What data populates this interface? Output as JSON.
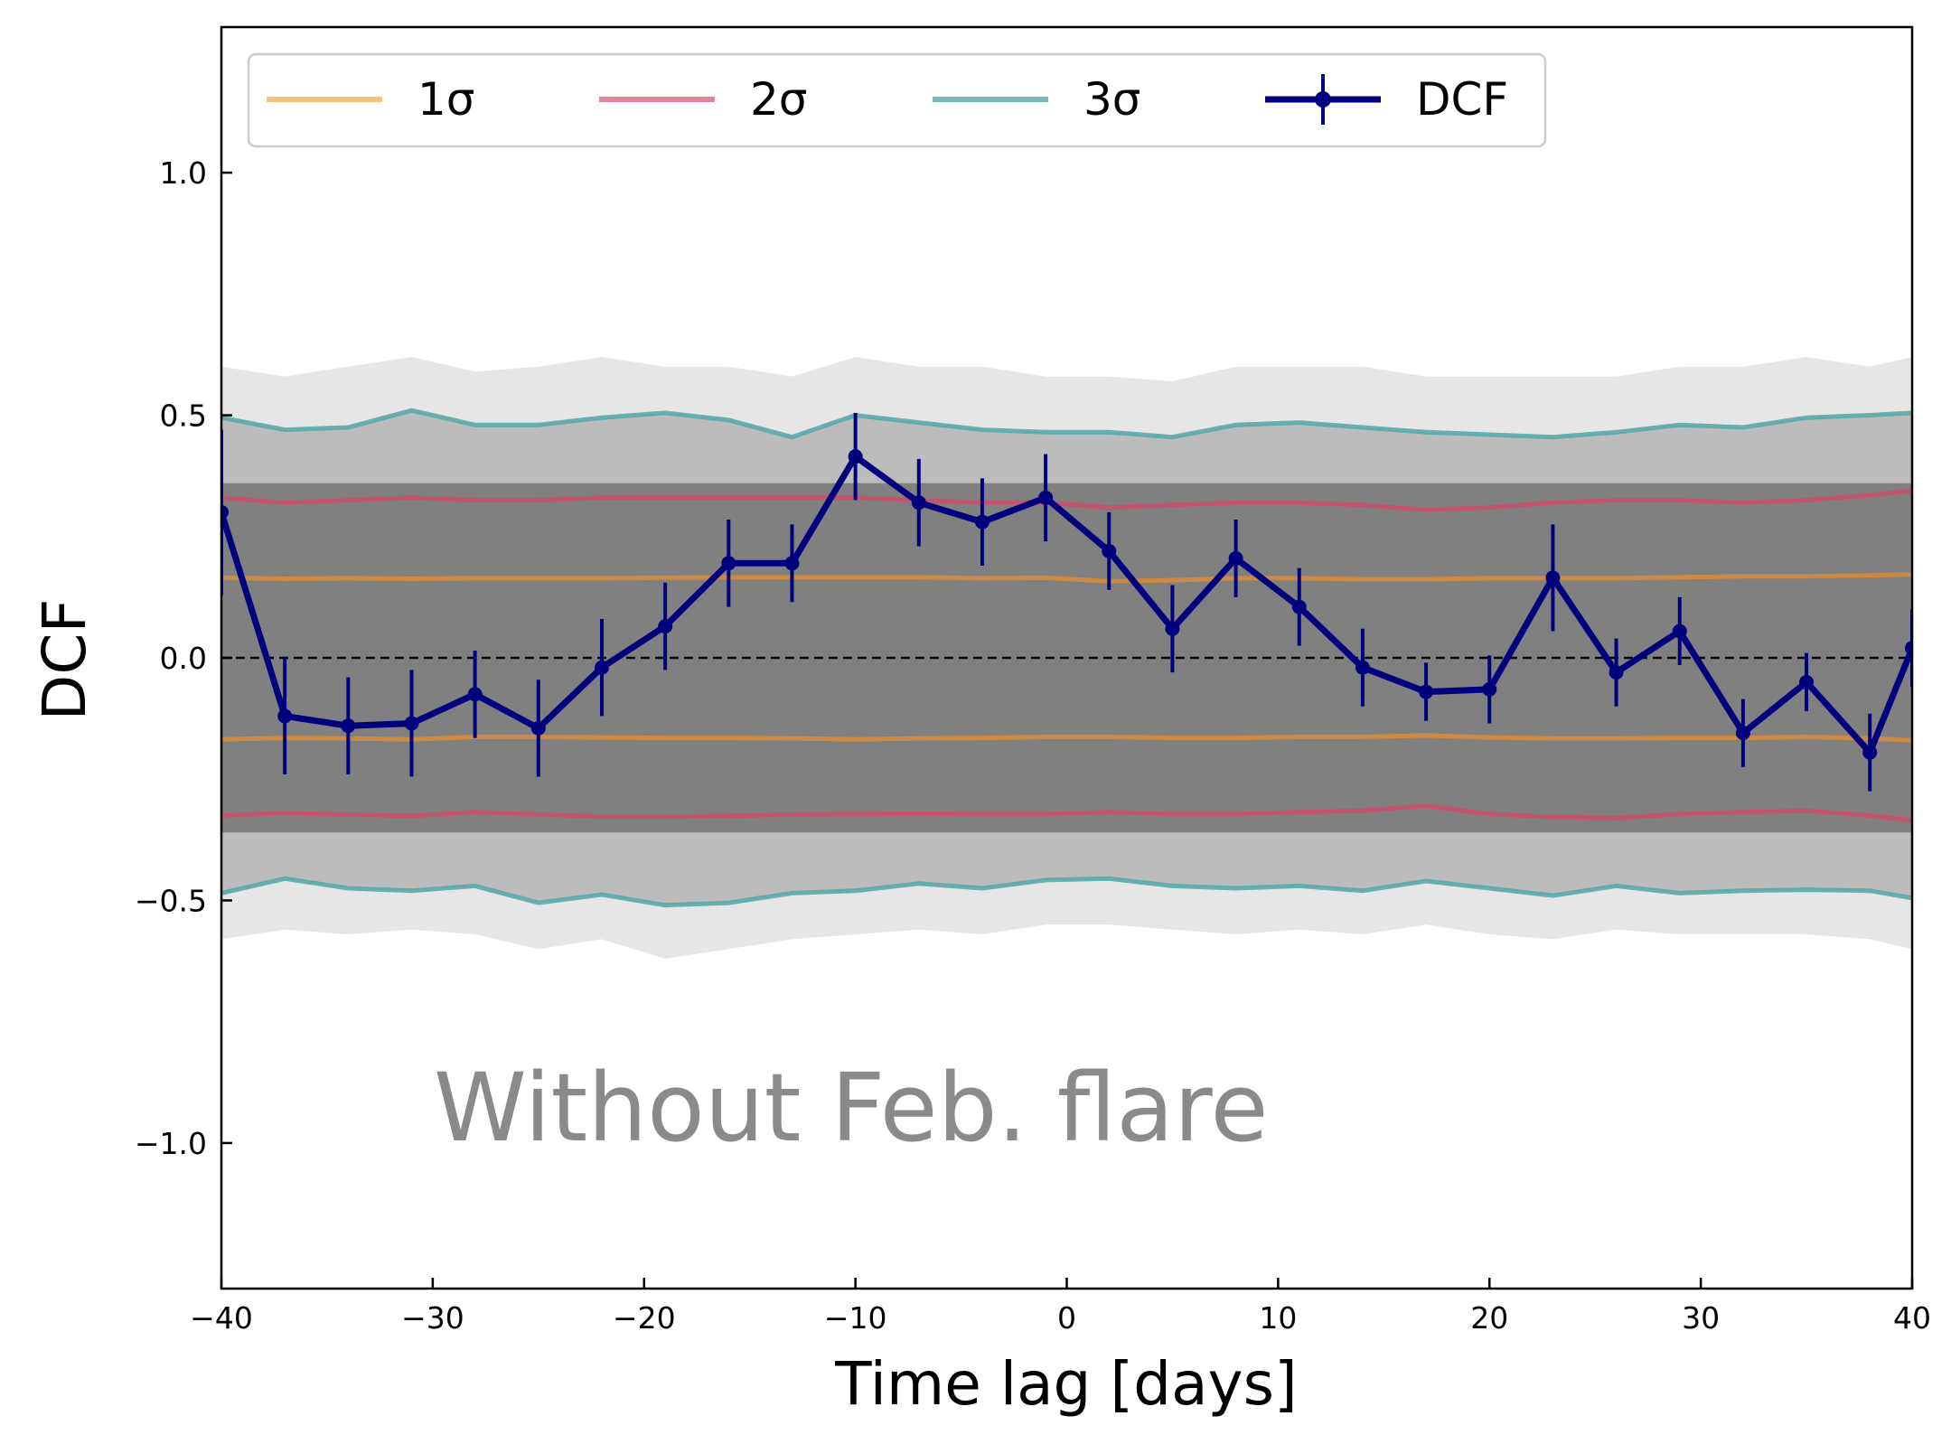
{
  "chart_data": {
    "type": "line",
    "xlabel": "Time lag [days]",
    "ylabel": "DCF",
    "xlim": [
      -40,
      40
    ],
    "ylim": [
      -1.3,
      1.3
    ],
    "x_ticks": [
      -40,
      -30,
      -20,
      -10,
      0,
      10,
      20,
      30,
      40
    ],
    "x_tick_labels": [
      "−40",
      "−30",
      "−20",
      "−10",
      "0",
      "10",
      "20",
      "30",
      "40"
    ],
    "y_ticks": [
      -1.0,
      -0.5,
      0.0,
      0.5,
      1.0
    ],
    "y_tick_labels": [
      "−1.0",
      "−0.5",
      "0.0",
      "0.5",
      "1.0"
    ],
    "grid": false,
    "legend_position": "top",
    "annotation": "Without Feb. flare",
    "zero_line": {
      "y": 0,
      "style": "dashed",
      "color": "#000000"
    },
    "x": [
      -40,
      -37,
      -34,
      -31,
      -28,
      -25,
      -22,
      -19,
      -16,
      -13,
      -10,
      -7,
      -4,
      -1,
      2,
      5,
      8,
      11,
      14,
      17,
      20,
      23,
      26,
      29,
      32,
      35,
      38,
      40
    ],
    "simulation_band": {
      "core_color": "#808080",
      "halo_color": "#c8c8c8",
      "core_lower": -0.36,
      "core_upper": 0.36,
      "halo_lower": [
        -0.58,
        -0.56,
        -0.57,
        -0.56,
        -0.57,
        -0.6,
        -0.58,
        -0.62,
        -0.6,
        -0.58,
        -0.57,
        -0.56,
        -0.57,
        -0.55,
        -0.55,
        -0.56,
        -0.57,
        -0.56,
        -0.57,
        -0.55,
        -0.57,
        -0.58,
        -0.56,
        -0.57,
        -0.57,
        -0.57,
        -0.58,
        -0.6
      ],
      "halo_upper": [
        0.6,
        0.58,
        0.6,
        0.62,
        0.59,
        0.6,
        0.62,
        0.6,
        0.6,
        0.58,
        0.62,
        0.6,
        0.6,
        0.58,
        0.58,
        0.57,
        0.6,
        0.6,
        0.6,
        0.58,
        0.58,
        0.58,
        0.58,
        0.6,
        0.6,
        0.62,
        0.6,
        0.62
      ]
    },
    "series": [
      {
        "name": "1σ",
        "color": "#f6c27a",
        "band_color": "#d4893a",
        "upper": [
          0.165,
          0.163,
          0.164,
          0.163,
          0.164,
          0.164,
          0.164,
          0.165,
          0.166,
          0.166,
          0.166,
          0.166,
          0.164,
          0.165,
          0.158,
          0.16,
          0.164,
          0.164,
          0.162,
          0.162,
          0.164,
          0.164,
          0.164,
          0.166,
          0.168,
          0.168,
          0.17,
          0.172
        ],
        "lower": [
          -0.168,
          -0.165,
          -0.166,
          -0.168,
          -0.163,
          -0.163,
          -0.164,
          -0.165,
          -0.165,
          -0.166,
          -0.168,
          -0.166,
          -0.165,
          -0.163,
          -0.163,
          -0.165,
          -0.165,
          -0.163,
          -0.163,
          -0.16,
          -0.164,
          -0.166,
          -0.166,
          -0.165,
          -0.165,
          -0.163,
          -0.166,
          -0.17
        ]
      },
      {
        "name": "2σ",
        "color": "#e8849a",
        "band_color": "#c9506a",
        "upper": [
          0.33,
          0.32,
          0.325,
          0.33,
          0.325,
          0.325,
          0.33,
          0.33,
          0.33,
          0.33,
          0.33,
          0.325,
          0.32,
          0.32,
          0.31,
          0.315,
          0.32,
          0.32,
          0.315,
          0.305,
          0.31,
          0.32,
          0.325,
          0.325,
          0.32,
          0.325,
          0.335,
          0.345
        ],
        "lower": [
          -0.325,
          -0.32,
          -0.323,
          -0.326,
          -0.318,
          -0.323,
          -0.327,
          -0.327,
          -0.326,
          -0.323,
          -0.322,
          -0.321,
          -0.322,
          -0.322,
          -0.318,
          -0.322,
          -0.322,
          -0.318,
          -0.315,
          -0.305,
          -0.322,
          -0.328,
          -0.33,
          -0.322,
          -0.318,
          -0.315,
          -0.325,
          -0.335
        ]
      },
      {
        "name": "3σ",
        "color": "#79b9b9",
        "band_color": "#5aa9a9",
        "upper": [
          0.495,
          0.47,
          0.475,
          0.51,
          0.48,
          0.48,
          0.495,
          0.505,
          0.49,
          0.455,
          0.5,
          0.485,
          0.47,
          0.465,
          0.465,
          0.455,
          0.48,
          0.485,
          0.475,
          0.465,
          0.46,
          0.455,
          0.465,
          0.48,
          0.475,
          0.495,
          0.5,
          0.505
        ],
        "lower": [
          -0.485,
          -0.455,
          -0.475,
          -0.48,
          -0.47,
          -0.505,
          -0.488,
          -0.51,
          -0.505,
          -0.485,
          -0.48,
          -0.465,
          -0.475,
          -0.458,
          -0.455,
          -0.47,
          -0.475,
          -0.47,
          -0.48,
          -0.46,
          -0.475,
          -0.49,
          -0.47,
          -0.485,
          -0.48,
          -0.478,
          -0.48,
          -0.495
        ]
      },
      {
        "name": "DCF",
        "color": "#00007f",
        "x": [
          -40,
          -37,
          -34,
          -31,
          -28,
          -25,
          -22,
          -19,
          -16,
          -13,
          -10,
          -7,
          -4,
          -1,
          2,
          5,
          8,
          11,
          14,
          17,
          20,
          23,
          26,
          29,
          32,
          35,
          38,
          40
        ],
        "values": [
          0.3,
          -0.12,
          -0.14,
          -0.135,
          -0.075,
          -0.145,
          -0.02,
          0.065,
          0.195,
          0.195,
          0.415,
          0.32,
          0.28,
          0.33,
          0.22,
          0.06,
          0.205,
          0.105,
          -0.02,
          -0.07,
          -0.065,
          0.165,
          -0.03,
          0.055,
          -0.155,
          -0.05,
          -0.195,
          0.02
        ],
        "errors": [
          0.17,
          0.12,
          0.1,
          0.11,
          0.09,
          0.1,
          0.1,
          0.09,
          0.09,
          0.08,
          0.09,
          0.09,
          0.09,
          0.09,
          0.08,
          0.09,
          0.08,
          0.08,
          0.08,
          0.06,
          0.07,
          0.11,
          0.07,
          0.07,
          0.07,
          0.06,
          0.08,
          0.08
        ]
      }
    ]
  }
}
